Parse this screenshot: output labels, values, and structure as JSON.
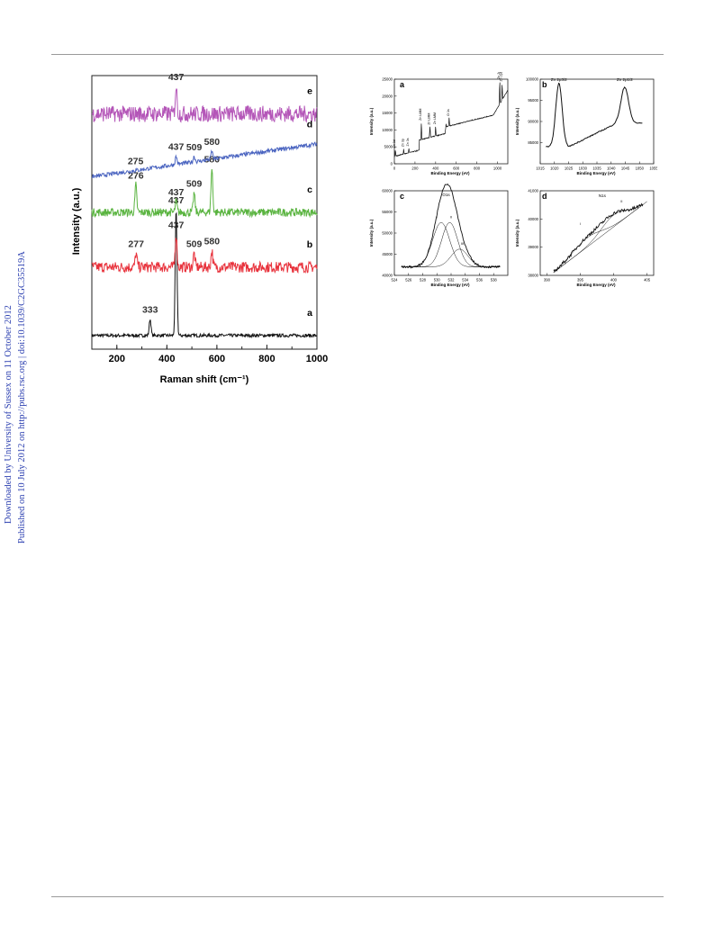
{
  "side_notes": {
    "downloaded": "Downloaded by University of Sussex on 11 October 2012",
    "published": "Published on 10 July 2012 on http://pubs.rsc.org | doi:10.1039/C2GC35519A"
  },
  "chart_data": [
    {
      "type": "line",
      "title": "",
      "xlabel": "Raman shift (cm⁻¹)",
      "ylabel": "Intensity (a.u.)",
      "xlim": [
        100,
        1000
      ],
      "xticks": [
        200,
        400,
        600,
        800,
        1000
      ],
      "series": [
        {
          "name": "a",
          "color": "#111111",
          "level": 0.05,
          "noise": 0.012,
          "peaks": [
            {
              "x": 333,
              "h": 0.06,
              "label": "333"
            },
            {
              "x": 437,
              "h": 0.46,
              "label": "437"
            }
          ]
        },
        {
          "name": "b",
          "color": "#e8323c",
          "level": 0.3,
          "noise": 0.04,
          "peaks": [
            {
              "x": 277,
              "h": 0.05,
              "label": "277"
            },
            {
              "x": 437,
              "h": 0.12,
              "label": "437"
            },
            {
              "x": 509,
              "h": 0.05,
              "label": "509"
            },
            {
              "x": 580,
              "h": 0.06,
              "label": "580"
            }
          ]
        },
        {
          "name": "c",
          "color": "#5ab440",
          "level": 0.5,
          "noise": 0.03,
          "peaks": [
            {
              "x": 276,
              "h": 0.1,
              "label": "276"
            },
            {
              "x": 437,
              "h": 0.04,
              "label": "437"
            },
            {
              "x": 509,
              "h": 0.07,
              "label": "509"
            },
            {
              "x": 580,
              "h": 0.16,
              "label": "580"
            }
          ]
        },
        {
          "name": "d",
          "color": "#4a64c0",
          "level": 0.63,
          "slope": 0.12,
          "noise": 0.015,
          "peaks": [
            {
              "x": 275,
              "h": 0.0,
              "label": "275"
            },
            {
              "x": 437,
              "h": 0.03,
              "label": "437"
            },
            {
              "x": 509,
              "h": 0.02,
              "label": "509"
            },
            {
              "x": 580,
              "h": 0.03,
              "label": "580"
            }
          ]
        },
        {
          "name": "e",
          "color": "#b456b8",
          "level": 0.86,
          "noise": 0.06,
          "peaks": [
            {
              "x": 437,
              "h": 0.1,
              "label": "437"
            }
          ]
        }
      ]
    },
    {
      "type": "line",
      "panel": "a",
      "xlabel": "Binding Energy (eV)",
      "ylabel": "Intensity (a.u.)",
      "xlim": [
        0,
        1100
      ],
      "ylim": [
        0,
        25000
      ],
      "xticks": [
        0,
        200,
        400,
        600,
        800,
        1000
      ],
      "yticks": [
        0,
        5000,
        10000,
        15000,
        20000,
        25000
      ],
      "peak_labels": [
        "Zn 3d",
        "Zn 3p",
        "Zn 3s",
        "Zn LMM",
        "Zn LMM",
        "Zn LMM",
        "O 1s",
        "Zn 2p3/2",
        "Zn 2p1/2"
      ]
    },
    {
      "type": "line",
      "panel": "b",
      "xlabel": "Binding Energy (eV)",
      "ylabel": "Intensity (a.u.)",
      "xlim": [
        1015,
        1055
      ],
      "ylim": [
        80000,
        100000
      ],
      "xticks": [
        1015,
        1020,
        1025,
        1030,
        1035,
        1040,
        1045,
        1050,
        1055
      ],
      "yticks": [
        85000,
        90000,
        95000,
        100000
      ],
      "peak_labels": [
        "Zn 2p3/2",
        "Zn 2p1/2"
      ]
    },
    {
      "type": "line",
      "panel": "c",
      "xlabel": "Binding Energy (eV)",
      "ylabel": "Intensity (a.u.)",
      "xlim": [
        524,
        540
      ],
      "ylim": [
        40000,
        60000
      ],
      "xticks": [
        524,
        526,
        528,
        530,
        532,
        534,
        536,
        538
      ],
      "yticks": [
        40000,
        45000,
        50000,
        55000,
        60000
      ],
      "peak_labels": [
        "O1s",
        "I",
        "II",
        "III"
      ]
    },
    {
      "type": "line",
      "panel": "d",
      "xlabel": "Binding Energy (eV)",
      "ylabel": "Intensity (a.u.)",
      "xlim": [
        389,
        406
      ],
      "ylim": [
        38000,
        41000
      ],
      "xticks": [
        390,
        395,
        400,
        405
      ],
      "yticks": [
        38000,
        39000,
        40000,
        41000
      ],
      "peak_labels": [
        "N1s",
        "I",
        "II"
      ]
    }
  ]
}
